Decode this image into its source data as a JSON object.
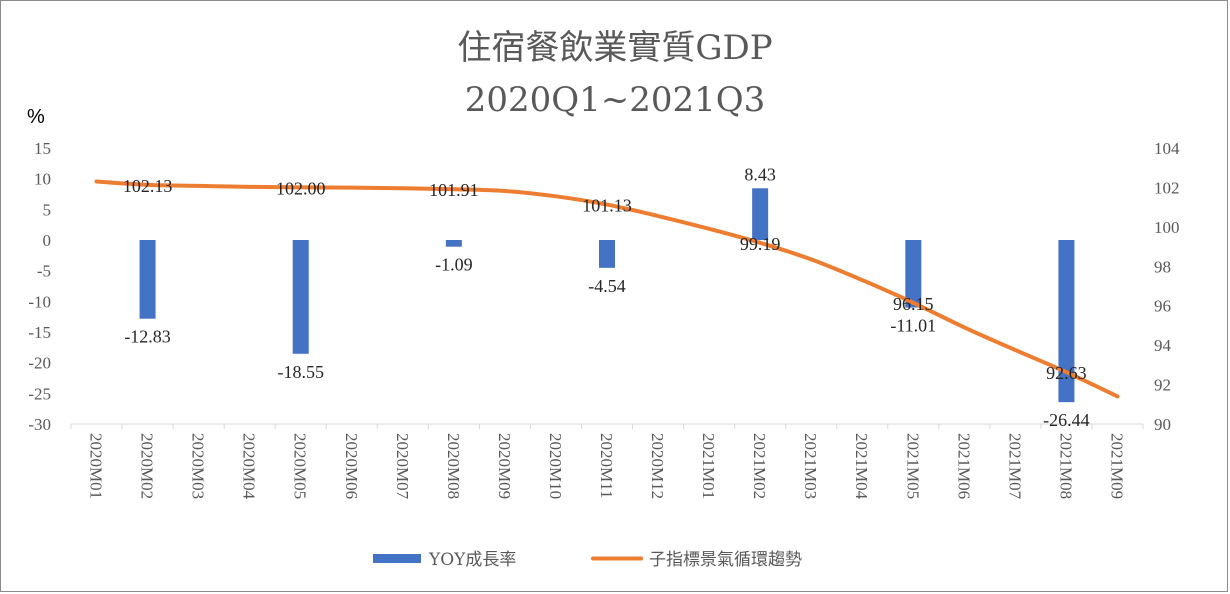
{
  "chart_data": {
    "type": "bar",
    "title": "住宿餐飲業實質GDP",
    "subtitle": "2020Q1~2021Q3",
    "y_unit_label": "%",
    "categories": [
      "2020M01",
      "2020M02",
      "2020M03",
      "2020M04",
      "2020M05",
      "2020M06",
      "2020M07",
      "2020M08",
      "2020M09",
      "2020M10",
      "2020M11",
      "2020M12",
      "2021M01",
      "2021M02",
      "2021M03",
      "2021M04",
      "2021M05",
      "2021M06",
      "2021M07",
      "2021M08",
      "2021M09"
    ],
    "y_left": {
      "min": -30,
      "max": 15,
      "step": 5,
      "ticks": [
        "15",
        "10",
        "5",
        "0",
        "-5",
        "-10",
        "-15",
        "-20",
        "-25",
        "-30"
      ]
    },
    "y_right": {
      "min": 90,
      "max": 104,
      "step": 2,
      "ticks": [
        "104",
        "102",
        "100",
        "98",
        "96",
        "94",
        "92",
        "90"
      ]
    },
    "series": [
      {
        "name": "YOY成長率",
        "type": "bar",
        "axis": "left",
        "color": "#4472C4",
        "values": [
          null,
          -12.83,
          null,
          null,
          -18.55,
          null,
          null,
          -1.09,
          null,
          null,
          -4.54,
          null,
          null,
          8.43,
          null,
          null,
          -11.01,
          null,
          null,
          -26.44,
          null
        ],
        "labels": [
          "",
          "-12.83",
          "",
          "",
          "-18.55",
          "",
          "",
          "-1.09",
          "",
          "",
          "-4.54",
          "",
          "",
          "8.43",
          "",
          "",
          "-11.01",
          "",
          "",
          "-26.44",
          ""
        ]
      },
      {
        "name": "子指標景氣循環趨勢",
        "type": "line",
        "axis": "right",
        "color": "#ED7D31",
        "values": [
          102.3,
          102.13,
          102.08,
          102.03,
          102.0,
          101.99,
          101.96,
          101.91,
          101.82,
          101.55,
          101.13,
          100.55,
          99.9,
          99.19,
          98.35,
          97.3,
          96.15,
          94.9,
          93.75,
          92.63,
          91.4
        ],
        "labels": [
          "",
          "102.13",
          "",
          "",
          "102.00",
          "",
          "",
          "101.91",
          "",
          "",
          "101.13",
          "",
          "",
          "99.19",
          "",
          "",
          "96.15",
          "",
          "",
          "92.63",
          ""
        ]
      }
    ],
    "grid": false,
    "legend_position": "bottom"
  }
}
